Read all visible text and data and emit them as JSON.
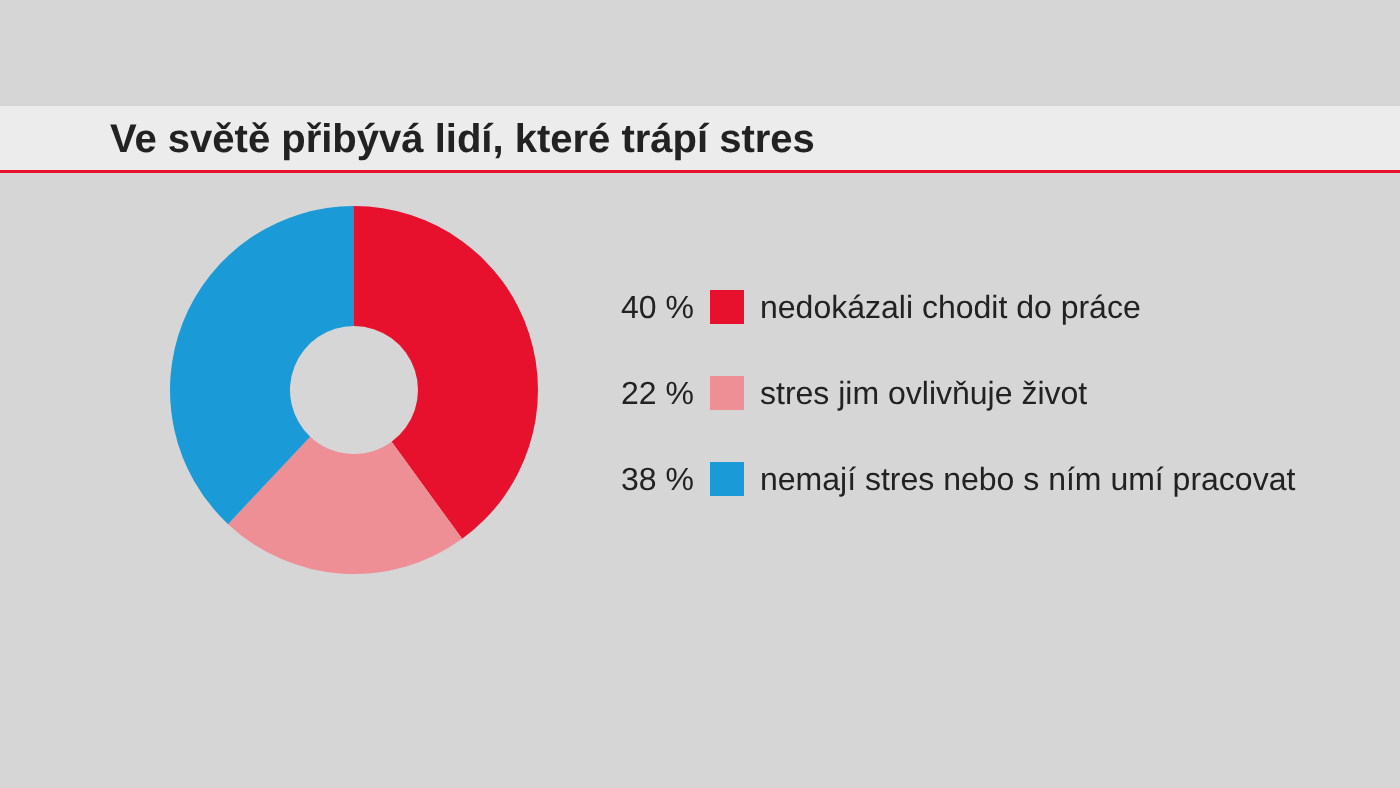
{
  "chart_data": {
    "type": "donut",
    "title": "Ve světě přibývá lidí, které trápí stres",
    "categories": [
      "nedokázali chodit do práce",
      "stres jim ovlivňuje život",
      "nemají stres nebo s ním umí pracovat"
    ],
    "values": [
      40,
      22,
      38
    ],
    "colors": [
      "#e8112d",
      "#ee8f96",
      "#1a9ad6"
    ],
    "value_labels": [
      "40 %",
      "22 %",
      "38 %"
    ],
    "legend": "right"
  }
}
